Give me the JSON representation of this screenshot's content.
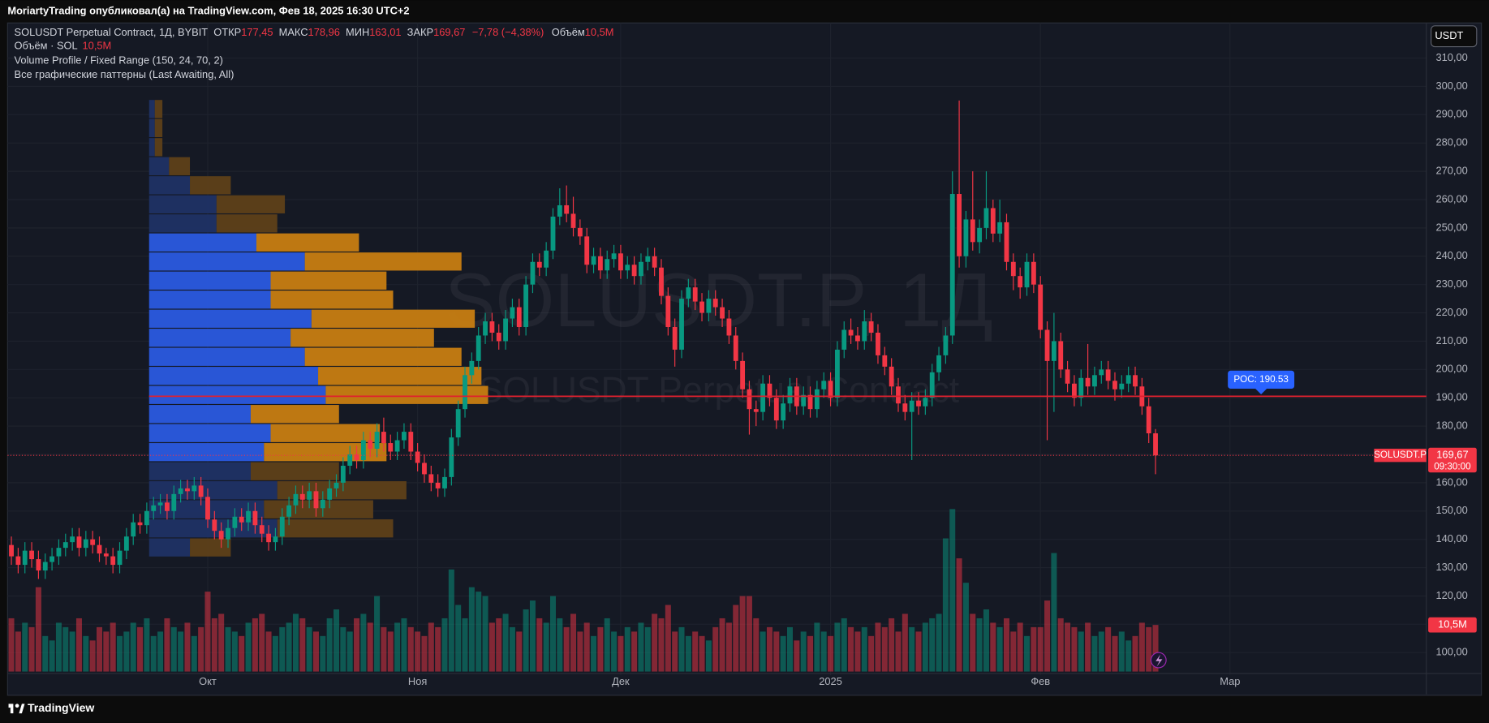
{
  "header": {
    "title": "MoriartyTrading опубликовал(а) на TradingView.com, Фев 18, 2025 16:30 UTC+2"
  },
  "footer": {
    "brand": "TradingView"
  },
  "chart_data": {
    "type": "candlestick",
    "legend": {
      "symbol": "SOLUSDT Perpetual Contract, 1Д, BYBIT",
      "open_label": "ОТКР",
      "open": "177,45",
      "high_label": "МАКС",
      "high": "178,96",
      "low_label": "МИН",
      "low": "163,01",
      "close_label": "ЗАКР",
      "close": "169,67",
      "change": "−7,78 (−4,38%)",
      "volume_label": "Объём",
      "volume": "10,5M"
    },
    "indicators": {
      "volume_name": "Объём · SOL",
      "volume_value": "10,5M",
      "profile_name": "Volume Profile / Fixed Range (150, 24, 70, 2)",
      "patterns_name": "Все графические паттерны (Last Awaiting, All)"
    },
    "watermark": {
      "title": "SOLUSDT.P, 1Д",
      "subtitle": "SOLUSDT Perpetual Contract"
    },
    "currency": "USDT",
    "up_color": "#089981",
    "down_color": "#f23645",
    "xlim": [
      -0.56,
      209
    ],
    "xticks": [
      {
        "value": 29,
        "label": "Окт"
      },
      {
        "value": 60,
        "label": "Ноя"
      },
      {
        "value": 90,
        "label": "Дек"
      },
      {
        "value": 121,
        "label": "2025"
      },
      {
        "value": 152,
        "label": "Фев"
      },
      {
        "value": 180,
        "label": "Мар"
      }
    ],
    "ylim": [
      93.3,
      322.4
    ],
    "yticks": [
      {
        "value": 100,
        "label": "100,00"
      },
      {
        "value": 110,
        "label": "110,00"
      },
      {
        "value": 120,
        "label": "120,00"
      },
      {
        "value": 130,
        "label": "130,00"
      },
      {
        "value": 140,
        "label": "140,00"
      },
      {
        "value": 150,
        "label": "150,00"
      },
      {
        "value": 160,
        "label": "160,00"
      },
      {
        "value": 170,
        "label": "170,00"
      },
      {
        "value": 180,
        "label": "180,00"
      },
      {
        "value": 190,
        "label": "190,00"
      },
      {
        "value": 200,
        "label": "200,00"
      },
      {
        "value": 210,
        "label": "210,00"
      },
      {
        "value": 220,
        "label": "220,00"
      },
      {
        "value": 230,
        "label": "230,00"
      },
      {
        "value": 240,
        "label": "240,00"
      },
      {
        "value": 250,
        "label": "250,00"
      },
      {
        "value": 260,
        "label": "260,00"
      },
      {
        "value": 270,
        "label": "270,00"
      },
      {
        "value": 280,
        "label": "280,00"
      },
      {
        "value": 290,
        "label": "290,00"
      },
      {
        "value": 300,
        "label": "300,00"
      },
      {
        "value": 310,
        "label": "310,00"
      }
    ],
    "grid": true,
    "candles": [
      [
        138,
        141,
        131,
        134
      ],
      [
        134,
        137,
        128,
        131
      ],
      [
        131,
        139,
        128,
        136
      ],
      [
        136,
        139,
        130,
        133
      ],
      [
        133,
        136,
        126,
        129
      ],
      [
        129,
        135,
        126,
        132
      ],
      [
        132,
        137,
        129,
        134
      ],
      [
        134,
        140,
        131,
        137
      ],
      [
        137,
        142,
        134,
        139
      ],
      [
        139,
        144,
        136,
        141
      ],
      [
        141,
        144,
        134,
        137
      ],
      [
        137,
        143,
        134,
        140
      ],
      [
        140,
        143,
        135,
        138
      ],
      [
        138,
        141,
        132,
        135
      ],
      [
        135,
        137,
        131,
        134
      ],
      [
        134,
        137,
        128,
        131
      ],
      [
        131,
        139,
        128,
        136
      ],
      [
        136,
        144,
        133,
        141
      ],
      [
        141,
        149,
        138,
        146
      ],
      [
        146,
        149,
        142,
        145
      ],
      [
        145,
        153,
        142,
        150
      ],
      [
        150,
        155,
        147,
        152
      ],
      [
        152,
        156,
        149,
        153
      ],
      [
        153,
        156,
        147,
        150
      ],
      [
        150,
        159,
        147,
        156
      ],
      [
        156,
        161,
        153,
        158
      ],
      [
        158,
        161,
        154,
        157
      ],
      [
        157,
        162,
        154,
        159
      ],
      [
        159,
        162,
        152,
        155
      ],
      [
        155,
        158,
        144,
        147
      ],
      [
        147,
        150,
        140,
        143
      ],
      [
        143,
        146,
        137,
        140
      ],
      [
        140,
        147,
        137,
        144
      ],
      [
        144,
        151,
        141,
        148
      ],
      [
        148,
        151,
        143,
        146
      ],
      [
        146,
        153,
        143,
        150
      ],
      [
        150,
        153,
        142,
        145
      ],
      [
        145,
        148,
        139,
        142
      ],
      [
        142,
        145,
        136,
        139
      ],
      [
        139,
        144,
        136,
        141
      ],
      [
        141,
        151,
        138,
        148
      ],
      [
        148,
        155,
        145,
        152
      ],
      [
        152,
        159,
        149,
        156
      ],
      [
        156,
        159,
        151,
        154
      ],
      [
        154,
        160,
        151,
        157
      ],
      [
        157,
        160,
        148,
        151
      ],
      [
        151,
        157,
        148,
        154
      ],
      [
        154,
        161,
        151,
        158
      ],
      [
        158,
        163,
        155,
        160
      ],
      [
        160,
        169,
        157,
        166
      ],
      [
        166,
        173,
        163,
        170
      ],
      [
        170,
        173,
        165,
        168
      ],
      [
        168,
        178,
        165,
        175
      ],
      [
        175,
        178,
        169,
        172
      ],
      [
        172,
        181,
        169,
        178
      ],
      [
        178,
        183,
        171,
        174
      ],
      [
        174,
        177,
        168,
        171
      ],
      [
        171,
        178,
        168,
        175
      ],
      [
        175,
        181,
        172,
        178
      ],
      [
        178,
        181,
        168,
        171
      ],
      [
        171,
        174,
        164,
        167
      ],
      [
        167,
        170,
        160,
        163
      ],
      [
        163,
        166,
        157,
        160
      ],
      [
        160,
        163,
        155,
        158
      ],
      [
        158,
        165,
        155,
        162
      ],
      [
        162,
        179,
        159,
        176
      ],
      [
        176,
        189,
        173,
        186
      ],
      [
        186,
        201,
        183,
        198
      ],
      [
        198,
        206,
        195,
        203
      ],
      [
        203,
        215,
        200,
        212
      ],
      [
        212,
        220,
        209,
        217
      ],
      [
        217,
        220,
        210,
        213
      ],
      [
        213,
        216,
        207,
        210
      ],
      [
        210,
        221,
        207,
        218
      ],
      [
        218,
        225,
        215,
        222
      ],
      [
        222,
        225,
        212,
        215
      ],
      [
        215,
        233,
        212,
        230
      ],
      [
        230,
        241,
        227,
        238
      ],
      [
        238,
        241,
        233,
        236
      ],
      [
        236,
        245,
        233,
        242
      ],
      [
        242,
        257,
        239,
        254
      ],
      [
        254,
        264,
        251,
        258
      ],
      [
        258,
        265,
        252,
        255
      ],
      [
        255,
        261,
        247,
        250
      ],
      [
        250,
        253,
        244,
        247
      ],
      [
        247,
        250,
        234,
        237
      ],
      [
        237,
        243,
        234,
        240
      ],
      [
        240,
        243,
        232,
        235
      ],
      [
        235,
        242,
        232,
        239
      ],
      [
        239,
        244,
        236,
        241
      ],
      [
        241,
        244,
        232,
        235
      ],
      [
        235,
        240,
        232,
        237
      ],
      [
        237,
        240,
        230,
        233
      ],
      [
        233,
        241,
        230,
        238
      ],
      [
        238,
        243,
        235,
        240
      ],
      [
        240,
        243,
        233,
        236
      ],
      [
        236,
        239,
        223,
        226
      ],
      [
        226,
        229,
        212,
        215
      ],
      [
        215,
        218,
        201,
        207
      ],
      [
        207,
        228,
        204,
        225
      ],
      [
        225,
        232,
        222,
        229
      ],
      [
        229,
        232,
        221,
        224
      ],
      [
        224,
        227,
        217,
        220
      ],
      [
        220,
        228,
        217,
        225
      ],
      [
        225,
        228,
        219,
        222
      ],
      [
        222,
        225,
        215,
        218
      ],
      [
        218,
        221,
        209,
        212
      ],
      [
        212,
        215,
        200,
        203
      ],
      [
        203,
        206,
        190,
        193
      ],
      [
        193,
        196,
        177,
        186
      ],
      [
        186,
        189,
        180,
        185
      ],
      [
        185,
        198,
        182,
        195
      ],
      [
        195,
        198,
        187,
        190
      ],
      [
        190,
        193,
        179,
        182
      ],
      [
        182,
        191,
        179,
        188
      ],
      [
        188,
        197,
        185,
        194
      ],
      [
        194,
        197,
        184,
        187
      ],
      [
        187,
        194,
        184,
        191
      ],
      [
        191,
        194,
        183,
        186
      ],
      [
        186,
        196,
        183,
        193
      ],
      [
        193,
        199,
        190,
        196
      ],
      [
        196,
        199,
        187,
        190
      ],
      [
        190,
        210,
        187,
        207
      ],
      [
        207,
        217,
        204,
        214
      ],
      [
        214,
        218,
        209,
        212
      ],
      [
        212,
        215,
        207,
        210
      ],
      [
        210,
        221,
        207,
        217
      ],
      [
        217,
        220,
        210,
        213
      ],
      [
        213,
        216,
        202,
        205
      ],
      [
        205,
        208,
        198,
        201
      ],
      [
        201,
        204,
        191,
        194
      ],
      [
        194,
        197,
        185,
        188
      ],
      [
        188,
        191,
        182,
        185
      ],
      [
        185,
        192,
        168,
        189
      ],
      [
        189,
        192,
        184,
        187
      ],
      [
        187,
        193,
        184,
        190
      ],
      [
        190,
        202,
        187,
        199
      ],
      [
        199,
        208,
        196,
        205
      ],
      [
        205,
        215,
        202,
        212
      ],
      [
        212,
        270,
        209,
        262
      ],
      [
        262,
        295,
        236,
        240
      ],
      [
        240,
        256,
        236,
        253
      ],
      [
        253,
        270,
        242,
        245
      ],
      [
        245,
        253,
        241,
        250
      ],
      [
        250,
        270,
        246,
        257
      ],
      [
        257,
        260,
        245,
        248
      ],
      [
        248,
        260,
        245,
        252
      ],
      [
        252,
        255,
        235,
        238
      ],
      [
        238,
        241,
        228,
        233
      ],
      [
        233,
        236,
        225,
        229
      ],
      [
        229,
        241,
        226,
        238
      ],
      [
        238,
        241,
        227,
        230
      ],
      [
        230,
        233,
        211,
        214
      ],
      [
        214,
        217,
        175,
        203
      ],
      [
        203,
        220,
        185,
        210
      ],
      [
        210,
        213,
        197,
        200
      ],
      [
        200,
        203,
        192,
        195
      ],
      [
        195,
        198,
        187,
        190
      ],
      [
        190,
        200,
        187,
        197
      ],
      [
        197,
        209,
        191,
        194
      ],
      [
        194,
        201,
        191,
        198
      ],
      [
        198,
        203,
        195,
        200
      ],
      [
        200,
        203,
        193,
        196
      ],
      [
        196,
        199,
        189,
        193
      ],
      [
        193,
        198,
        190,
        195
      ],
      [
        195,
        201,
        192,
        198
      ],
      [
        198,
        201,
        191,
        194
      ],
      [
        194,
        197,
        184,
        187
      ],
      [
        187,
        190,
        174,
        177.45
      ],
      [
        177.45,
        178.96,
        163.01,
        169.67
      ]
    ],
    "volume": {
      "ylim": [
        0,
        40
      ],
      "last_label": "10,5M",
      "values": [
        12,
        9,
        11,
        10,
        19,
        8,
        7,
        11,
        10,
        9,
        12,
        8,
        7,
        10,
        9,
        11,
        8,
        9,
        11,
        10,
        12,
        8,
        9,
        12,
        10,
        9,
        11,
        8,
        10,
        18,
        12,
        13,
        10,
        9,
        8,
        11,
        12,
        13,
        9,
        8,
        10,
        11,
        13,
        12,
        10,
        9,
        8,
        12,
        14,
        10,
        9,
        12,
        13,
        11,
        17,
        10,
        9,
        11,
        12,
        10,
        9,
        8,
        11,
        10,
        12,
        23,
        15,
        12,
        19,
        18,
        17,
        11,
        12,
        13,
        10,
        9,
        14,
        16,
        12,
        11,
        17,
        12,
        10,
        13,
        9,
        11,
        8,
        10,
        12,
        9,
        8,
        10,
        9,
        11,
        10,
        13,
        12,
        15,
        9,
        10,
        8,
        9,
        8,
        7,
        10,
        12,
        11,
        15,
        17,
        17,
        12,
        9,
        10,
        9,
        8,
        10,
        7,
        9,
        8,
        11,
        9,
        8,
        11,
        12,
        10,
        9,
        10,
        8,
        11,
        10,
        12,
        9,
        13,
        10,
        9,
        11,
        12,
        13,
        30,
        36.6,
        25.5,
        20,
        13,
        12,
        14,
        11,
        10,
        12,
        9,
        11,
        8,
        10,
        10,
        16,
        26.7,
        12,
        11,
        10,
        9,
        11,
        8,
        9,
        10,
        8,
        9,
        7,
        8,
        11,
        10,
        10.5
      ]
    },
    "volume_profile": {
      "low": 133.6,
      "high": 295.2,
      "xlim": [
        0,
        134.5
      ],
      "value_area": [
        5,
        16
      ],
      "up_color": "#2a5ae0",
      "down_color": "#c77d12",
      "up_color_dim": "#1f3265",
      "down_color_dim": "#5e4019",
      "rows": [
        [
          4.3,
          4.3
        ],
        [
          13.5,
          12.2
        ],
        [
          12.1,
          11.5
        ],
        [
          13.5,
          13.6
        ],
        [
          10.7,
          9.3
        ],
        [
          12.1,
          12.9
        ],
        [
          12.8,
          11.5
        ],
        [
          10.7,
          9.3
        ],
        [
          18.6,
          17.1
        ],
        [
          17.8,
          17.2
        ],
        [
          16.4,
          16.5
        ],
        [
          14.9,
          15.1
        ],
        [
          17.1,
          17.2
        ],
        [
          12.8,
          12.9
        ],
        [
          12.8,
          12.2
        ],
        [
          16.4,
          16.5
        ],
        [
          11.3,
          10.8
        ],
        [
          7.1,
          6.4
        ],
        [
          7.1,
          7.2
        ],
        [
          4.3,
          4.3
        ],
        [
          2.1,
          2.2
        ],
        [
          0.6,
          0.8
        ],
        [
          0.6,
          0.8
        ],
        [
          0.6,
          0.8
        ]
      ],
      "poc": {
        "value": 190.53,
        "label": "POC: 190.53",
        "color": "#e0202e",
        "label_color": "#2962ff"
      }
    },
    "price_tag": {
      "symbol": "SOLUSDT.P",
      "price": "169,67",
      "countdown": "09:30:00"
    }
  }
}
